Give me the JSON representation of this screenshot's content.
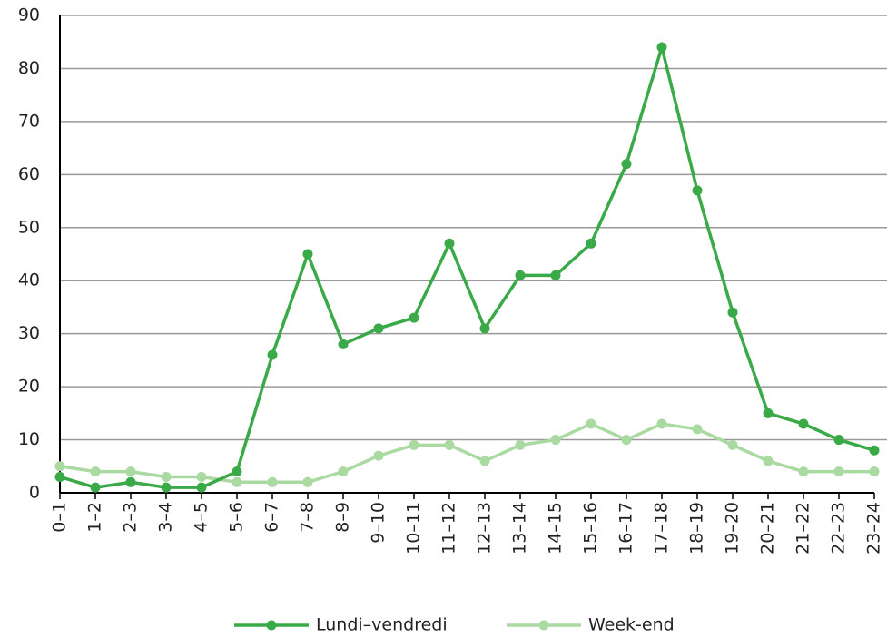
{
  "chart_data": {
    "type": "line",
    "categories": [
      "0–1",
      "1–2",
      "2–3",
      "3–4",
      "4–5",
      "5–6",
      "6–7",
      "7–8",
      "8–9",
      "9–10",
      "10–11",
      "11–12",
      "12–13",
      "13–14",
      "14–15",
      "15–16",
      "16–17",
      "17–18",
      "18–19",
      "19–20",
      "20–21",
      "21–22",
      "22–23",
      "23–24"
    ],
    "series": [
      {
        "name": "Lundi–vendredi",
        "color": "#3aaa48",
        "values": [
          3,
          1,
          2,
          1,
          1,
          4,
          26,
          45,
          28,
          31,
          33,
          47,
          31,
          41,
          41,
          47,
          62,
          84,
          57,
          34,
          15,
          13,
          10,
          8
        ]
      },
      {
        "name": "Week-end",
        "color": "#aad9a2",
        "values": [
          5,
          4,
          4,
          3,
          3,
          2,
          2,
          2,
          4,
          7,
          9,
          9,
          6,
          9,
          10,
          13,
          10,
          13,
          12,
          9,
          6,
          4,
          4,
          4
        ]
      }
    ],
    "ylim": [
      0,
      90
    ],
    "yticks": [
      0,
      10,
      20,
      30,
      40,
      50,
      60,
      70,
      80,
      90
    ],
    "grid": true,
    "legend": "bottom"
  }
}
